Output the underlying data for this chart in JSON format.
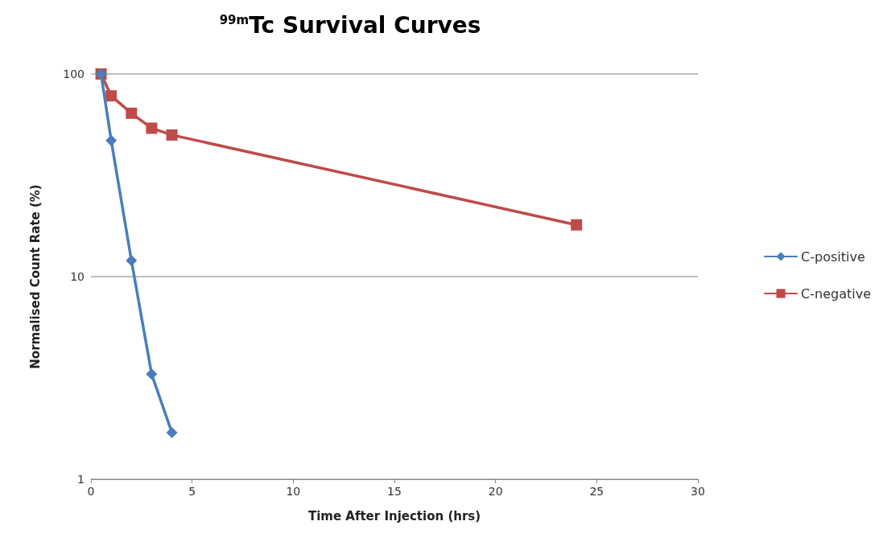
{
  "chart_data": {
    "type": "line",
    "title": "$^{99m}$Tc Survival Curves",
    "xlabel": "Time After Injection (hrs)",
    "ylabel": "Normalised Count Rate (%)",
    "log": "y",
    "grid": "y",
    "legend": "right",
    "xlim": [
      0,
      30
    ],
    "xticks": [
      0,
      5,
      10,
      15,
      20,
      25,
      30
    ],
    "ylim": [
      1,
      100
    ],
    "yticks": [
      1,
      10,
      100
    ],
    "series": [
      {
        "name": "C-positive",
        "color": "#4a7ebb",
        "marker": "diamond",
        "x": [
          0.5,
          1,
          2,
          3,
          4
        ],
        "values": [
          100,
          47,
          12,
          3.3,
          1.7
        ]
      },
      {
        "name": "C-negative",
        "color": "#be4b48",
        "marker": "square",
        "x": [
          0.5,
          1,
          2,
          3,
          4,
          24
        ],
        "values": [
          100,
          78,
          64,
          54,
          50,
          18
        ]
      }
    ]
  }
}
